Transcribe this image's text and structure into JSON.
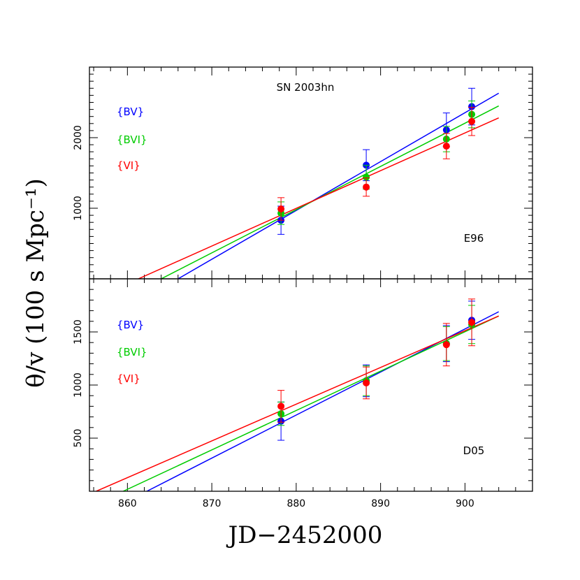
{
  "chart_data": {
    "type": "scatter",
    "xlabel": "JD−2452000",
    "ylabel": "θ/v (100 s Mpc⁻¹)",
    "xlim": [
      855.5,
      908.0
    ],
    "x_ticks": [
      860,
      870,
      880,
      890,
      900
    ],
    "legend_placement": "left",
    "panels": [
      {
        "id": "top",
        "title": "SN 2003hn",
        "label": "E96",
        "ylim": [
          0,
          3000
        ],
        "y_ticks": [
          1000,
          2000
        ],
        "series": [
          {
            "name": "{BV}",
            "color": "#0000ff",
            "points": [
              {
                "x": 878.2,
                "y": 830,
                "err": 200
              },
              {
                "x": 888.3,
                "y": 1610,
                "err": 220
              },
              {
                "x": 897.8,
                "y": 2110,
                "err": 240
              },
              {
                "x": 900.8,
                "y": 2440,
                "err": 260
              }
            ],
            "fit": {
              "x": [
                866.0,
                904.0
              ],
              "y": [
                0,
                2630
              ]
            }
          },
          {
            "name": "{BVI}",
            "color": "#00cc00",
            "points": [
              {
                "x": 878.2,
                "y": 930,
                "err": 160
              },
              {
                "x": 888.3,
                "y": 1440,
                "err": 170
              },
              {
                "x": 897.8,
                "y": 1980,
                "err": 180
              },
              {
                "x": 900.8,
                "y": 2330,
                "err": 190
              }
            ],
            "fit": {
              "x": [
                864.0,
                904.0
              ],
              "y": [
                0,
                2450
              ]
            }
          },
          {
            "name": "{VI}",
            "color": "#ff0000",
            "points": [
              {
                "x": 878.2,
                "y": 990,
                "err": 160
              },
              {
                "x": 888.3,
                "y": 1300,
                "err": 130
              },
              {
                "x": 897.8,
                "y": 1880,
                "err": 180
              },
              {
                "x": 900.8,
                "y": 2230,
                "err": 200
              }
            ],
            "fit": {
              "x": [
                861.3,
                904.0
              ],
              "y": [
                0,
                2280
              ]
            }
          }
        ]
      },
      {
        "id": "bottom",
        "title": "",
        "label": "D05",
        "ylim": [
          0,
          2000
        ],
        "y_ticks": [
          500,
          1000,
          1500
        ],
        "series": [
          {
            "name": "{BV}",
            "color": "#0000ff",
            "points": [
              {
                "x": 878.2,
                "y": 660,
                "err": 180
              },
              {
                "x": 888.3,
                "y": 1040,
                "err": 150
              },
              {
                "x": 897.8,
                "y": 1390,
                "err": 170
              },
              {
                "x": 900.8,
                "y": 1610,
                "err": 180
              }
            ],
            "fit": {
              "x": [
                862.3,
                904.0
              ],
              "y": [
                0,
                1690
              ]
            }
          },
          {
            "name": "{BVI}",
            "color": "#00cc00",
            "points": [
              {
                "x": 878.2,
                "y": 730,
                "err": 110
              },
              {
                "x": 888.3,
                "y": 1040,
                "err": 140
              },
              {
                "x": 897.8,
                "y": 1390,
                "err": 160
              },
              {
                "x": 900.8,
                "y": 1570,
                "err": 180
              }
            ],
            "fit": {
              "x": [
                859.5,
                904.0
              ],
              "y": [
                0,
                1650
              ]
            }
          },
          {
            "name": "{VI}",
            "color": "#ff0000",
            "points": [
              {
                "x": 878.2,
                "y": 800,
                "err": 150
              },
              {
                "x": 888.3,
                "y": 1020,
                "err": 150
              },
              {
                "x": 897.8,
                "y": 1380,
                "err": 200
              },
              {
                "x": 900.8,
                "y": 1590,
                "err": 220
              }
            ],
            "fit": {
              "x": [
                856.3,
                904.0
              ],
              "y": [
                0,
                1650
              ]
            }
          }
        ]
      }
    ]
  }
}
